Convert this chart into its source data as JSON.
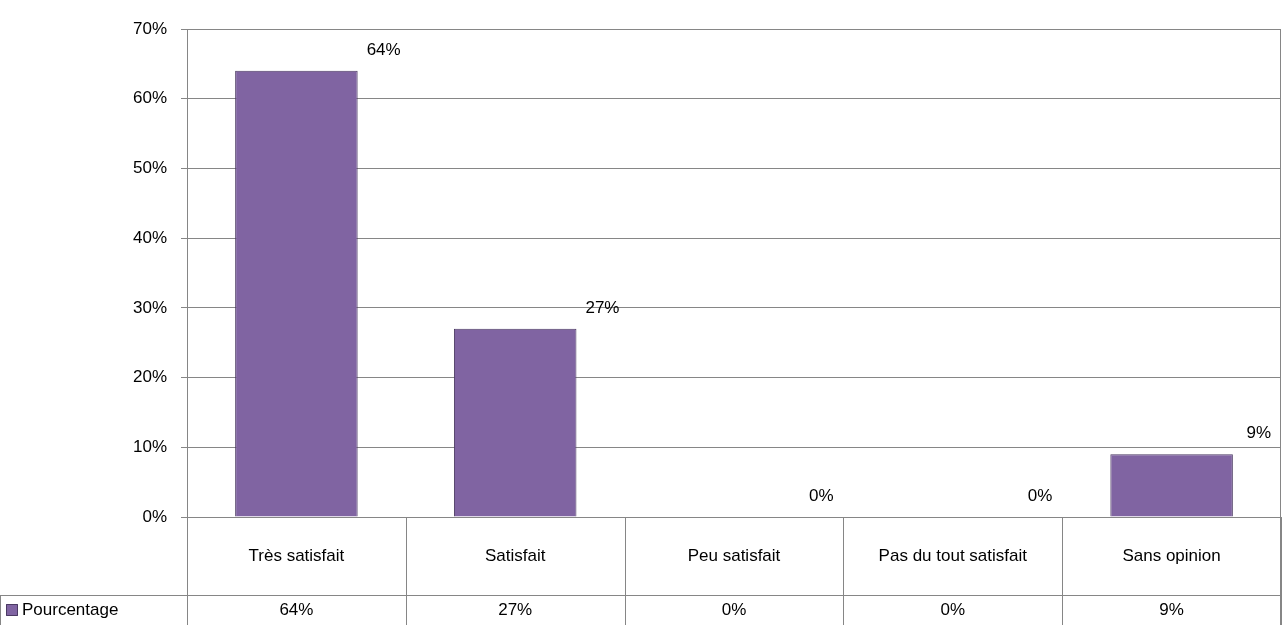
{
  "chart_data": {
    "type": "bar",
    "categories": [
      "Très satisfait",
      "Satisfait",
      "Peu satisfait",
      "Pas du tout satisfait",
      "Sans opinion"
    ],
    "series": [
      {
        "name": "Pourcentage",
        "color": "#8064a2",
        "values": [
          64,
          27,
          0,
          0,
          9
        ],
        "value_labels": [
          "64%",
          "27%",
          "0%",
          "0%",
          "9%"
        ]
      }
    ],
    "ylim": [
      0,
      70
    ],
    "yticks": [
      {
        "value": 0,
        "label": "0%"
      },
      {
        "value": 10,
        "label": "10%"
      },
      {
        "value": 20,
        "label": "20%"
      },
      {
        "value": 30,
        "label": "30%"
      },
      {
        "value": 40,
        "label": "40%"
      },
      {
        "value": 50,
        "label": "50%"
      },
      {
        "value": 60,
        "label": "60%"
      },
      {
        "value": 70,
        "label": "70%"
      }
    ],
    "grid": "y",
    "legend": "bottom"
  }
}
